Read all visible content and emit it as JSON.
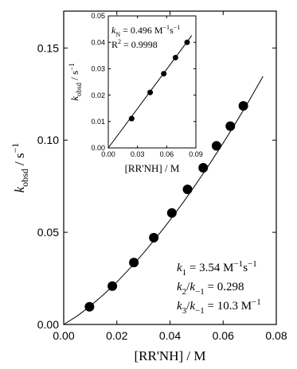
{
  "chart_data": {
    "type": "scatter",
    "main": {
      "xlabel": "[RR'NH] / M",
      "ylabel": {
        "k": "k",
        "sub": "obsd",
        "unit": " / s",
        "sup": "−1"
      },
      "xlim": [
        0.0,
        0.08
      ],
      "ylim": [
        0.0,
        0.17
      ],
      "xticks": [
        0.0,
        0.02,
        0.04,
        0.06,
        0.08
      ],
      "xtick_labels": [
        "0.00",
        "0.02",
        "0.04",
        "0.06",
        "0.08"
      ],
      "yticks": [
        0.0,
        0.05,
        0.1,
        0.15
      ],
      "ytick_labels": [
        "0.00",
        "0.05",
        "0.10",
        "0.15"
      ],
      "series": [
        {
          "x": [
            0.0097,
            0.0183,
            0.0264,
            0.0339,
            0.0407,
            0.0466,
            0.0525,
            0.0575,
            0.0627,
            0.0676
          ],
          "y": [
            0.0096,
            0.0208,
            0.0336,
            0.0471,
            0.0605,
            0.0733,
            0.085,
            0.0969,
            0.1076,
            0.1186
          ]
        }
      ],
      "fit_curve": {
        "x": [
          0.0,
          0.005,
          0.01,
          0.015,
          0.02,
          0.025,
          0.03,
          0.035,
          0.04,
          0.045,
          0.05,
          0.055,
          0.06,
          0.065,
          0.07,
          0.075
        ],
        "y": [
          0.0,
          0.0045,
          0.01,
          0.0162,
          0.023,
          0.0306,
          0.0387,
          0.0474,
          0.0566,
          0.0663,
          0.0766,
          0.0873,
          0.0984,
          0.11,
          0.122,
          0.1346
        ]
      },
      "annotations": [
        {
          "parts": [
            [
              "it",
              "k"
            ],
            [
              "sub",
              "1"
            ],
            [
              "n",
              " = 3.54 M"
            ],
            [
              "sup",
              "−1"
            ],
            [
              "n",
              "s"
            ],
            [
              "sup",
              "−1"
            ]
          ]
        },
        {
          "parts": [
            [
              "it",
              "k"
            ],
            [
              "sub",
              "2"
            ],
            [
              "n",
              "/"
            ],
            [
              "it",
              "k"
            ],
            [
              "sub",
              "−1"
            ],
            [
              "n",
              " = 0.298"
            ]
          ]
        },
        {
          "parts": [
            [
              "it",
              "k"
            ],
            [
              "sub",
              "3"
            ],
            [
              "n",
              "/"
            ],
            [
              "it",
              "k"
            ],
            [
              "sub",
              "−1"
            ],
            [
              "n",
              " = 10.3 M"
            ],
            [
              "sup",
              "−1"
            ]
          ]
        }
      ]
    },
    "inset": {
      "xlabel": "[RR'NH] / M",
      "ylabel": {
        "k": "k",
        "sub": "obsd",
        "unit": " / s",
        "sup": "−1"
      },
      "xlim": [
        0.0,
        0.09
      ],
      "ylim": [
        0.0,
        0.05
      ],
      "xticks": [
        0.0,
        0.03,
        0.06,
        0.09
      ],
      "xtick_labels": [
        "0.00",
        "0.03",
        "0.06",
        "0.09"
      ],
      "yticks": [
        0.0,
        0.01,
        0.02,
        0.03,
        0.04,
        0.05
      ],
      "ytick_labels": [
        "0.00",
        "0.01",
        "0.02",
        "0.03",
        "0.04",
        "0.05"
      ],
      "series": [
        {
          "x": [
            0.024,
            0.043,
            0.057,
            0.069,
            0.081
          ],
          "y": [
            0.0111,
            0.021,
            0.0281,
            0.0342,
            0.04
          ]
        }
      ],
      "fit_line": {
        "x": [
          0.0,
          0.0858
        ],
        "y": [
          0.0,
          0.0426
        ]
      },
      "annotations": [
        {
          "parts": [
            [
              "it",
              "k"
            ],
            [
              "sub",
              "N"
            ],
            [
              "n",
              " = 0.496 M"
            ],
            [
              "sup",
              "−1"
            ],
            [
              "n",
              "s"
            ],
            [
              "sup",
              "−1"
            ]
          ]
        },
        {
          "parts": [
            [
              "n",
              "R"
            ],
            [
              "sup",
              "2"
            ],
            [
              "n",
              " = 0.9998"
            ]
          ]
        }
      ]
    }
  }
}
